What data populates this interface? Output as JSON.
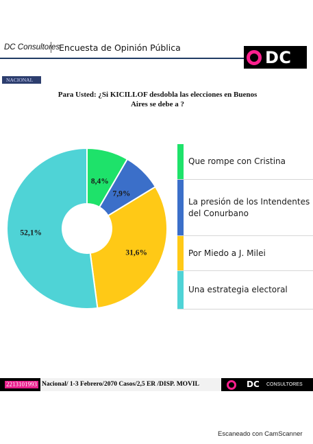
{
  "header": {
    "brand": "DC Consultores",
    "survey_title": "Encuesta de Opinión Pública",
    "logo_text": "DC",
    "logo_color": "#ff1f8e"
  },
  "tag": "NACIONAL",
  "chart_data": {
    "type": "pie",
    "title": "Para Usted: ¿Si KICILLOF desdobla las elecciones en Buenos Aires se debe a ?",
    "donut": true,
    "categories": [
      "Que rompe con Cristina",
      "La presión de los Intendentes del Conurbano",
      "Por Miedo a J. Milei",
      "Una estrategia electoral"
    ],
    "values": [
      8.4,
      7.9,
      31.6,
      52.1
    ],
    "data_labels": [
      "8,4%",
      "7,9%",
      "31,6%",
      "52,1%"
    ],
    "colors": [
      "#1ee26a",
      "#3b6fc9",
      "#ffc916",
      "#4fd3d6"
    ],
    "legend_position": "right"
  },
  "footer": {
    "code": "2213101993",
    "text": "Nacional/ 1-3 Febrero/2070 Casos/2,5 ER /DISP. MOVIL",
    "logo_text": "DC",
    "brand": "CONSULTORES"
  },
  "scanner_note": "Escaneado con CamScanner"
}
